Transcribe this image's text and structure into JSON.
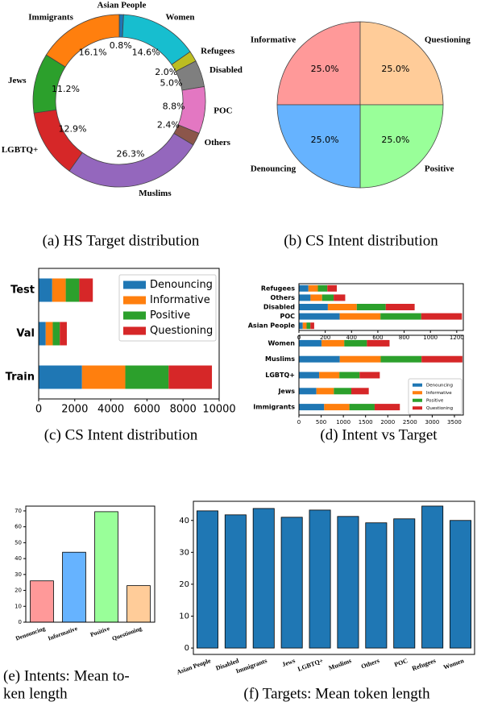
{
  "chart_data": [
    {
      "type": "donut",
      "caption": "(a) HS Target distribution",
      "categories": [
        "Asian People",
        "Women",
        "Refugees",
        "Disabled",
        "POC",
        "Others",
        "Muslims",
        "LGBTQ+",
        "Jews",
        "Immigrants"
      ],
      "values": [
        0.8,
        14.6,
        2.0,
        5.0,
        8.8,
        2.4,
        26.3,
        12.9,
        11.2,
        16.1
      ],
      "value_labels": [
        "0.8%",
        "14.6%",
        "2.0%",
        "5.0%",
        "8.8%",
        "2.4%",
        "26.3%",
        "12.9%",
        "11.2%",
        "16.1%"
      ],
      "colors": [
        "#1f77b4",
        "#17becf",
        "#bcbd22",
        "#7f7f7f",
        "#e377c2",
        "#8c564b",
        "#9467bd",
        "#d62728",
        "#2ca02c",
        "#ff7f0e"
      ]
    },
    {
      "type": "pie",
      "caption": "(b) CS Intent distribution",
      "categories": [
        "Informative",
        "Questioning",
        "Positive",
        "Denouncing"
      ],
      "values": [
        25.0,
        25.0,
        25.0,
        25.0
      ],
      "value_labels": [
        "25.0%",
        "25.0%",
        "25.0%",
        "25.0%"
      ],
      "colors": [
        "#ff9999",
        "#ffcc99",
        "#99ff99",
        "#66b3ff"
      ]
    },
    {
      "type": "barh_stacked",
      "caption": "(c) CS Intent distribution",
      "categories": [
        "Test",
        "Val",
        "Train"
      ],
      "series": [
        {
          "name": "Denouncing",
          "color": "#1f77b4",
          "values": [
            750,
            390,
            2400
          ]
        },
        {
          "name": "Informative",
          "color": "#ff7f0e",
          "values": [
            750,
            390,
            2400
          ]
        },
        {
          "name": "Positive",
          "color": "#2ca02c",
          "values": [
            750,
            390,
            2400
          ]
        },
        {
          "name": "Questioning",
          "color": "#d62728",
          "values": [
            750,
            390,
            2400
          ]
        }
      ],
      "xlim": [
        0,
        10000
      ],
      "xticks": [
        0,
        2000,
        4000,
        6000,
        8000,
        10000
      ],
      "legend": "upper right"
    },
    {
      "type": "barh_panels",
      "caption": "(d) Intent vs Target",
      "series": [
        {
          "name": "Denouncing",
          "color": "#1f77b4"
        },
        {
          "name": "Informative",
          "color": "#ff7f0e"
        },
        {
          "name": "Positive",
          "color": "#2ca02c"
        },
        {
          "name": "Questioning",
          "color": "#d62728"
        }
      ],
      "panels": [
        {
          "categories": [
            "Refugees",
            "Others",
            "Disabled",
            "POC",
            "Asian People"
          ],
          "values": [
            [
              72,
              88,
              220,
              310,
              29
            ],
            [
              72,
              88,
              220,
              310,
              29
            ],
            [
              72,
              88,
              220,
              310,
              29
            ],
            [
              72,
              88,
              220,
              310,
              29
            ]
          ],
          "xlim": [
            0,
            1250
          ],
          "xticks": [
            0,
            200,
            400,
            600,
            800,
            1000,
            1200
          ]
        },
        {
          "categories": [
            "Women",
            "Muslims",
            "LGBTQ+",
            "Jews",
            "Immigrants"
          ],
          "values": [
            [
              510,
              920,
              455,
              393,
              568
            ],
            [
              510,
              920,
              455,
              393,
              568
            ],
            [
              510,
              920,
              455,
              393,
              568
            ],
            [
              510,
              920,
              455,
              393,
              568
            ]
          ],
          "xlim": [
            0,
            3700
          ],
          "xticks": [
            0,
            500,
            1000,
            1500,
            2000,
            2500,
            3000,
            3500
          ]
        }
      ],
      "legend": "lower right"
    },
    {
      "type": "bar",
      "caption": [
        "(e) Intents: Mean to-",
        "ken length"
      ],
      "categories": [
        "Denouncing",
        "Informative",
        "Positive",
        "Questioning"
      ],
      "values": [
        26,
        44,
        69.5,
        23
      ],
      "colors": [
        "#ff9999",
        "#66b3ff",
        "#99ff99",
        "#ffcc99"
      ],
      "ylim": [
        0,
        73
      ],
      "yticks": [
        0,
        10,
        20,
        30,
        40,
        50,
        60,
        70
      ]
    },
    {
      "type": "bar",
      "caption": "(f) Targets: Mean token length",
      "categories": [
        "Asian People",
        "Disabled",
        "Immigrants",
        "Jews",
        "LGBTQ+",
        "Muslims",
        "Others",
        "POC",
        "Refugees",
        "Women"
      ],
      "values": [
        43,
        41.75,
        43.75,
        41,
        43.25,
        41.25,
        39.25,
        40.5,
        44.5,
        40
      ],
      "color": "#1f77b4",
      "ylim": [
        -2,
        46
      ],
      "yticks": [
        0,
        10,
        20,
        30,
        40
      ]
    }
  ]
}
